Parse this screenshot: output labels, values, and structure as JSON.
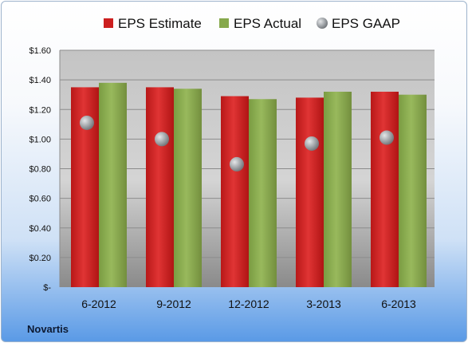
{
  "chart_data": {
    "type": "bar",
    "categories": [
      "6-2012",
      "9-2012",
      "12-2012",
      "3-2013",
      "6-2013"
    ],
    "series": [
      {
        "name": "EPS Estimate",
        "kind": "bar",
        "color": "#cc1f1f",
        "values": [
          1.35,
          1.35,
          1.29,
          1.28,
          1.32
        ]
      },
      {
        "name": "EPS Actual",
        "kind": "bar",
        "color": "#86a94c",
        "values": [
          1.38,
          1.34,
          1.27,
          1.32,
          1.3
        ]
      },
      {
        "name": "EPS GAAP",
        "kind": "scatter",
        "color": "#a8acb0",
        "values": [
          1.11,
          1.0,
          0.83,
          0.97,
          1.01
        ]
      }
    ],
    "ylim": [
      0,
      1.6
    ],
    "y_ticks": [
      0,
      0.2,
      0.4,
      0.6,
      0.8,
      1.0,
      1.2,
      1.4,
      1.6
    ],
    "y_tick_labels": [
      "$-",
      "$0.20",
      "$0.40",
      "$0.60",
      "$0.80",
      "$1.00",
      "$1.20",
      "$1.40",
      "$1.60"
    ],
    "grid": true,
    "legend_position": "top"
  },
  "footer": {
    "company": "Novartis"
  }
}
